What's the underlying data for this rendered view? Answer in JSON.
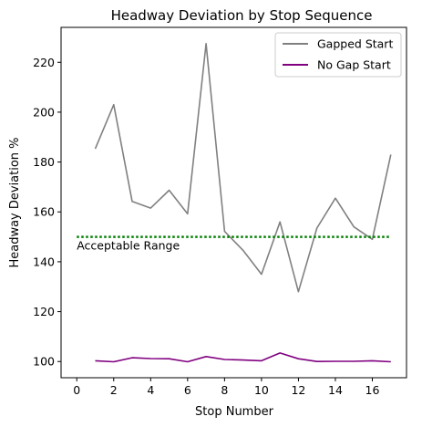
{
  "chart_data": {
    "type": "line",
    "title": "Headway Deviation by Stop Sequence",
    "xlabel": "Stop Number",
    "ylabel": "Headway Deviation %",
    "x": [
      1,
      2,
      3,
      4,
      5,
      6,
      7,
      8,
      9,
      10,
      11,
      12,
      13,
      14,
      15,
      16,
      17
    ],
    "series": [
      {
        "name": "Gapped Start",
        "color": "#808080",
        "values": [
          185.3,
          203.0,
          164.2,
          161.5,
          168.7,
          159.2,
          227.5,
          152.2,
          144.6,
          135.0,
          156.0,
          128.0,
          153.5,
          165.5,
          154.0,
          149.0,
          183.0
        ]
      },
      {
        "name": "No Gap Start",
        "color": "#800080",
        "values": [
          100.3,
          99.9,
          101.5,
          101.2,
          101.1,
          99.9,
          102.0,
          100.8,
          100.6,
          100.3,
          103.4,
          101.1,
          100.0,
          100.1,
          100.1,
          100.3,
          99.9
        ]
      }
    ],
    "reference_line": {
      "y": 150,
      "x_range": [
        0,
        17
      ],
      "color": "#008000",
      "style": "dotted",
      "label": "Acceptable Range"
    },
    "xlim": [
      -0.85,
      17.85
    ],
    "ylim": [
      93.5,
      234.0
    ],
    "xticks": [
      0,
      2,
      4,
      6,
      8,
      10,
      12,
      14,
      16
    ],
    "yticks": [
      100,
      120,
      140,
      160,
      180,
      200,
      220
    ],
    "grid": false,
    "legend_position": "upper right"
  }
}
